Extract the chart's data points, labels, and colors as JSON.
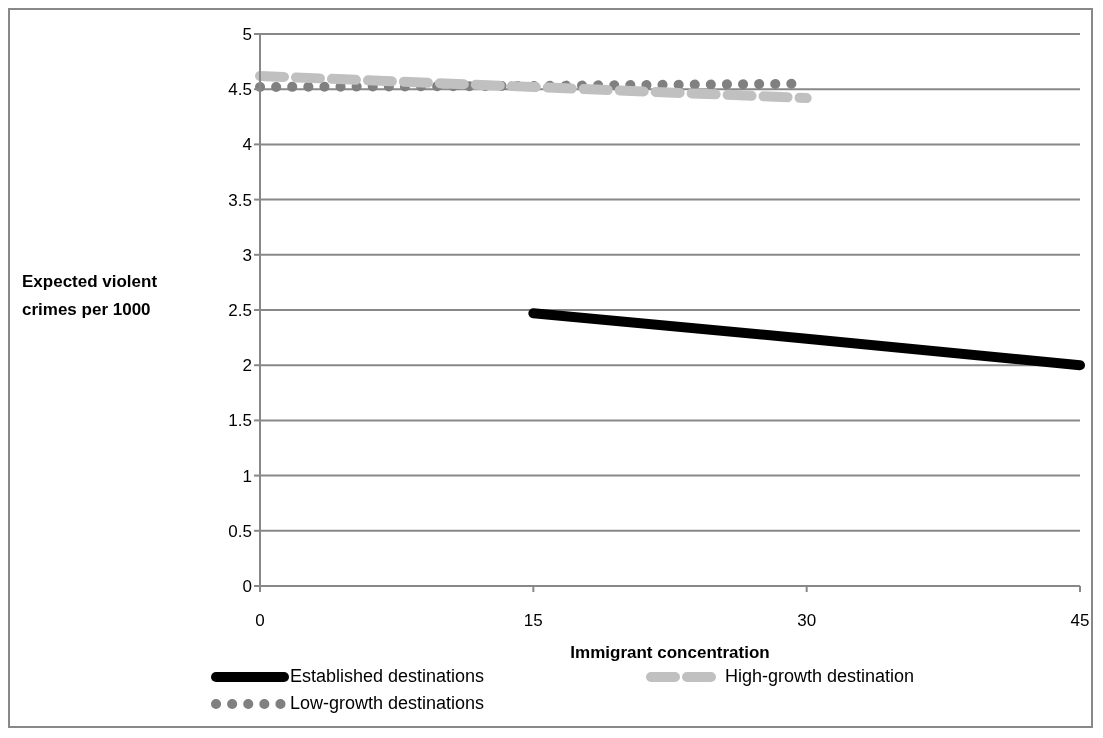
{
  "chart_data": {
    "type": "line",
    "xlabel": "Immigrant concentration",
    "ylabel": "Expected violent crimes per 1000",
    "categories": [
      "0",
      "15",
      "30",
      "45"
    ],
    "ylim": [
      0,
      5
    ],
    "yticks": [
      0,
      0.5,
      1,
      1.5,
      2,
      2.5,
      3,
      3.5,
      4,
      4.5,
      5
    ],
    "grid": "y",
    "legend": "bottom",
    "marker": "none",
    "series": [
      {
        "name": "Established destinations",
        "color": "#000000",
        "line_style": "solid",
        "values": [
          null,
          2.47,
          2.24,
          2.0
        ]
      },
      {
        "name": "Low-growth destinations",
        "color": "#808080",
        "line_style": "dotted",
        "values": [
          4.52,
          4.53,
          4.55,
          null
        ]
      },
      {
        "name": "High-growth destination",
        "color": "#c0c0c0",
        "line_style": "dashed",
        "values": [
          4.62,
          4.52,
          4.42,
          null
        ]
      }
    ]
  }
}
